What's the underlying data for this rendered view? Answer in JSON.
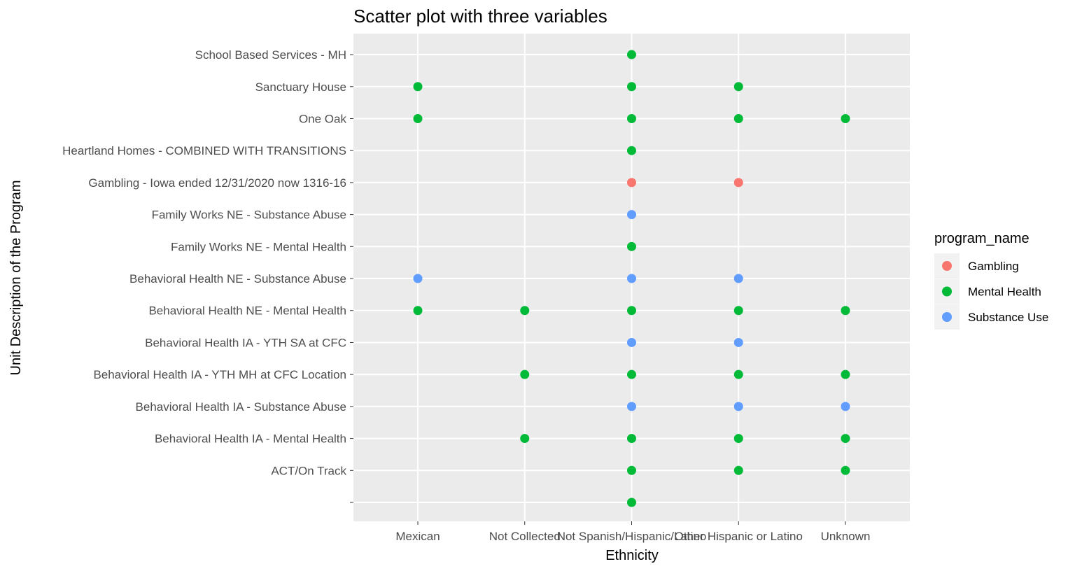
{
  "chart_data": {
    "type": "scatter",
    "title": "Scatter plot with three variables",
    "xlabel": "Ethnicity",
    "ylabel": "Unit Description of the Program",
    "x_categories": [
      "Mexican",
      "Not Collected",
      "Not Spanish/Hispanic/Latino",
      "Other Hispanic or Latino",
      "Unknown"
    ],
    "y_categories": [
      "",
      "ACT/On Track",
      "Behavioral Health IA -  Mental Health",
      "Behavioral Health IA - Substance Abuse",
      "Behavioral Health IA - YTH MH at CFC Location",
      "Behavioral Health IA - YTH SA at CFC",
      "Behavioral Health NE - Mental Health",
      "Behavioral Health NE - Substance Abuse",
      "Family Works NE - Mental Health",
      "Family Works NE - Substance Abuse",
      "Gambling - Iowa ended 12/31/2020 now 1316-16",
      "Heartland Homes - COMBINED WITH TRANSITIONS",
      "One Oak",
      "Sanctuary House",
      "School Based Services - MH"
    ],
    "legend": {
      "title": "program_name",
      "position": "right",
      "entries": [
        {
          "name": "Gambling",
          "color": "#F8766D"
        },
        {
          "name": "Mental Health",
          "color": "#00BA38"
        },
        {
          "name": "Substance Use",
          "color": "#619CFF"
        }
      ]
    },
    "grid": true,
    "points": [
      {
        "x": "Not Spanish/Hispanic/Latino",
        "y": "School Based Services - MH",
        "series": "Mental Health"
      },
      {
        "x": "Mexican",
        "y": "Sanctuary House",
        "series": "Mental Health"
      },
      {
        "x": "Not Spanish/Hispanic/Latino",
        "y": "Sanctuary House",
        "series": "Mental Health"
      },
      {
        "x": "Other Hispanic or Latino",
        "y": "Sanctuary House",
        "series": "Mental Health"
      },
      {
        "x": "Mexican",
        "y": "One Oak",
        "series": "Mental Health"
      },
      {
        "x": "Not Spanish/Hispanic/Latino",
        "y": "One Oak",
        "series": "Mental Health"
      },
      {
        "x": "Other Hispanic or Latino",
        "y": "One Oak",
        "series": "Mental Health"
      },
      {
        "x": "Unknown",
        "y": "One Oak",
        "series": "Mental Health"
      },
      {
        "x": "Not Spanish/Hispanic/Latino",
        "y": "Heartland Homes - COMBINED WITH TRANSITIONS",
        "series": "Mental Health"
      },
      {
        "x": "Not Spanish/Hispanic/Latino",
        "y": "Gambling - Iowa ended 12/31/2020 now 1316-16",
        "series": "Gambling"
      },
      {
        "x": "Other Hispanic or Latino",
        "y": "Gambling - Iowa ended 12/31/2020 now 1316-16",
        "series": "Gambling"
      },
      {
        "x": "Not Spanish/Hispanic/Latino",
        "y": "Family Works NE - Substance Abuse",
        "series": "Substance Use"
      },
      {
        "x": "Not Spanish/Hispanic/Latino",
        "y": "Family Works NE - Mental Health",
        "series": "Mental Health"
      },
      {
        "x": "Mexican",
        "y": "Behavioral Health NE - Substance Abuse",
        "series": "Substance Use"
      },
      {
        "x": "Not Spanish/Hispanic/Latino",
        "y": "Behavioral Health NE - Substance Abuse",
        "series": "Substance Use"
      },
      {
        "x": "Other Hispanic or Latino",
        "y": "Behavioral Health NE - Substance Abuse",
        "series": "Substance Use"
      },
      {
        "x": "Mexican",
        "y": "Behavioral Health NE - Mental Health",
        "series": "Mental Health"
      },
      {
        "x": "Not Collected",
        "y": "Behavioral Health NE - Mental Health",
        "series": "Mental Health"
      },
      {
        "x": "Not Spanish/Hispanic/Latino",
        "y": "Behavioral Health NE - Mental Health",
        "series": "Mental Health"
      },
      {
        "x": "Other Hispanic or Latino",
        "y": "Behavioral Health NE - Mental Health",
        "series": "Mental Health"
      },
      {
        "x": "Unknown",
        "y": "Behavioral Health NE - Mental Health",
        "series": "Mental Health"
      },
      {
        "x": "Not Spanish/Hispanic/Latino",
        "y": "Behavioral Health IA - YTH SA at CFC",
        "series": "Substance Use"
      },
      {
        "x": "Other Hispanic or Latino",
        "y": "Behavioral Health IA - YTH SA at CFC",
        "series": "Substance Use"
      },
      {
        "x": "Not Collected",
        "y": "Behavioral Health IA - YTH MH at CFC Location",
        "series": "Mental Health"
      },
      {
        "x": "Not Spanish/Hispanic/Latino",
        "y": "Behavioral Health IA - YTH MH at CFC Location",
        "series": "Mental Health"
      },
      {
        "x": "Other Hispanic or Latino",
        "y": "Behavioral Health IA - YTH MH at CFC Location",
        "series": "Mental Health"
      },
      {
        "x": "Unknown",
        "y": "Behavioral Health IA - YTH MH at CFC Location",
        "series": "Mental Health"
      },
      {
        "x": "Not Spanish/Hispanic/Latino",
        "y": "Behavioral Health IA - Substance Abuse",
        "series": "Substance Use"
      },
      {
        "x": "Other Hispanic or Latino",
        "y": "Behavioral Health IA - Substance Abuse",
        "series": "Substance Use"
      },
      {
        "x": "Unknown",
        "y": "Behavioral Health IA - Substance Abuse",
        "series": "Substance Use"
      },
      {
        "x": "Not Collected",
        "y": "Behavioral Health IA -  Mental Health",
        "series": "Mental Health"
      },
      {
        "x": "Not Spanish/Hispanic/Latino",
        "y": "Behavioral Health IA -  Mental Health",
        "series": "Mental Health"
      },
      {
        "x": "Other Hispanic or Latino",
        "y": "Behavioral Health IA -  Mental Health",
        "series": "Mental Health"
      },
      {
        "x": "Unknown",
        "y": "Behavioral Health IA -  Mental Health",
        "series": "Mental Health"
      },
      {
        "x": "Not Spanish/Hispanic/Latino",
        "y": "ACT/On Track",
        "series": "Mental Health"
      },
      {
        "x": "Other Hispanic or Latino",
        "y": "ACT/On Track",
        "series": "Mental Health"
      },
      {
        "x": "Unknown",
        "y": "ACT/On Track",
        "series": "Mental Health"
      },
      {
        "x": "Not Spanish/Hispanic/Latino",
        "y": "",
        "series": "Mental Health"
      }
    ]
  }
}
